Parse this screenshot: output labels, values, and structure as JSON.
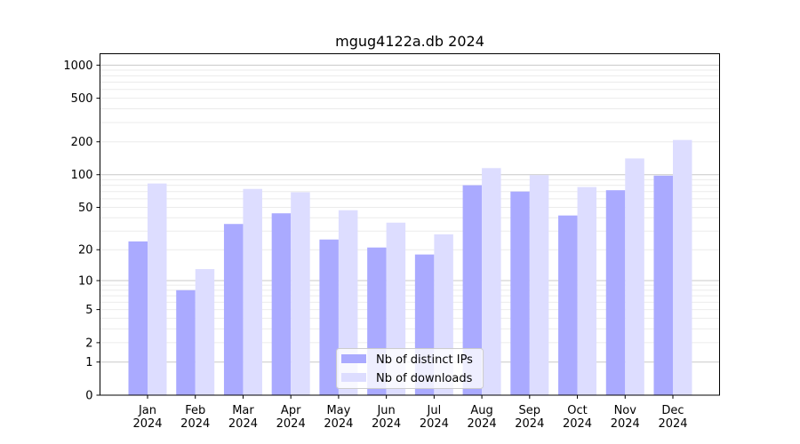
{
  "chart_data": {
    "type": "bar",
    "title": "mgug4122a.db 2024",
    "xlabel": "",
    "ylabel": "",
    "yscale": "log10(y+1)",
    "ylim": [
      0,
      1270
    ],
    "yticks": [
      0,
      1,
      2,
      5,
      10,
      20,
      50,
      100,
      200,
      500,
      1000
    ],
    "grid": true,
    "legend_position": "bottom-center",
    "categories": [
      "Jan\n2024",
      "Feb\n2024",
      "Mar\n2024",
      "Apr\n2024",
      "May\n2024",
      "Jun\n2024",
      "Jul\n2024",
      "Aug\n2024",
      "Sep\n2024",
      "Oct\n2024",
      "Nov\n2024",
      "Dec\n2024"
    ],
    "series": [
      {
        "name": "Nb of distinct IPs",
        "color": "#aaaaff",
        "values": [
          24,
          8,
          35,
          44,
          25,
          21,
          18,
          80,
          70,
          42,
          72,
          98
        ]
      },
      {
        "name": "Nb of downloads",
        "color": "#ddddff",
        "values": [
          83,
          13,
          74,
          69,
          47,
          36,
          28,
          115,
          99,
          77,
          141,
          208
        ]
      }
    ]
  }
}
